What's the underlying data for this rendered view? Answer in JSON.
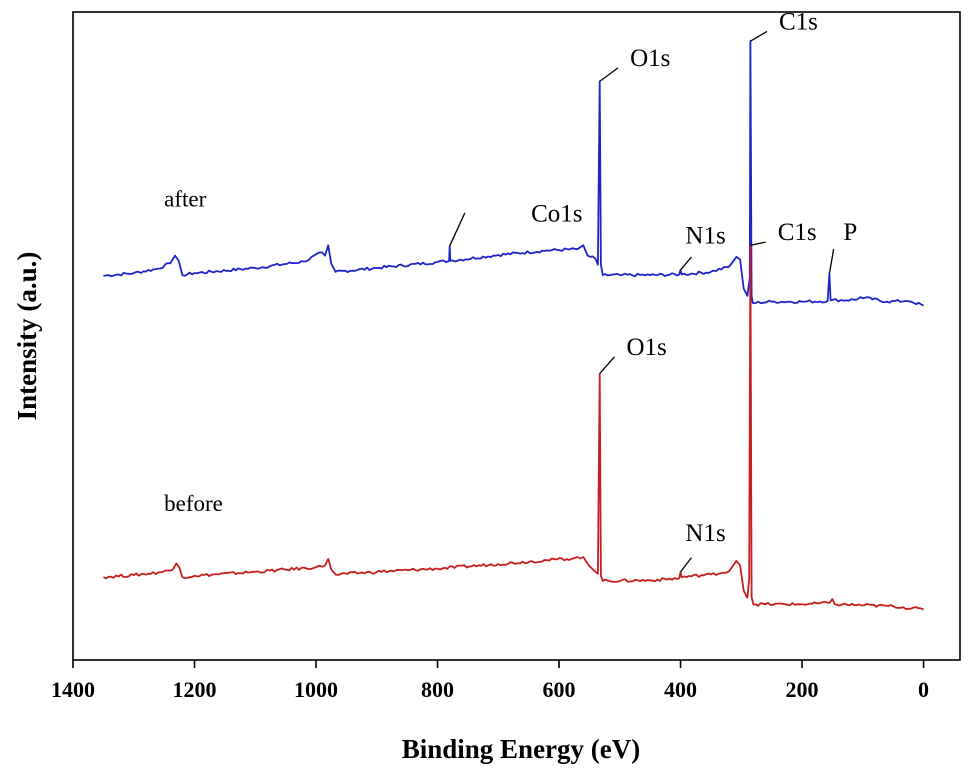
{
  "chart_data": {
    "type": "line",
    "title": "",
    "xlabel": "Binding Energy (eV)",
    "ylabel": "Intensity (a.u.)",
    "xlim": [
      1400,
      -60
    ],
    "ylim": [
      0,
      100
    ],
    "x_reversed": true,
    "x_ticks": [
      1400,
      1200,
      1000,
      800,
      600,
      400,
      200,
      0
    ],
    "x_tick_labels": [
      "1400",
      "1200",
      "1000",
      "800",
      "600",
      "400",
      "200",
      "0"
    ],
    "series": [
      {
        "name": "after",
        "color": "#1f24c9",
        "points": [
          [
            1350,
            59.3
          ],
          [
            1300,
            59.7
          ],
          [
            1260,
            60.4
          ],
          [
            1240,
            61.2
          ],
          [
            1232,
            62.4
          ],
          [
            1226,
            61.6
          ],
          [
            1220,
            59.4
          ],
          [
            1200,
            59.7
          ],
          [
            1100,
            60.5
          ],
          [
            1020,
            61.5
          ],
          [
            990,
            62.9
          ],
          [
            985,
            62.4
          ],
          [
            980,
            64.0
          ],
          [
            975,
            61.2
          ],
          [
            968,
            59.9
          ],
          [
            900,
            60.5
          ],
          [
            800,
            61.4
          ],
          [
            781,
            61.6
          ],
          [
            780,
            63.9
          ],
          [
            779,
            61.6
          ],
          [
            700,
            62.5
          ],
          [
            620,
            63.2
          ],
          [
            570,
            63.4
          ],
          [
            560,
            64.0
          ],
          [
            553,
            62.4
          ],
          [
            540,
            61.9
          ],
          [
            536,
            61.0
          ],
          [
            533,
            89.3
          ],
          [
            531,
            61.0
          ],
          [
            528,
            59.4
          ],
          [
            500,
            59.4
          ],
          [
            450,
            59.4
          ],
          [
            402,
            59.5
          ],
          [
            400,
            60.2
          ],
          [
            398,
            59.5
          ],
          [
            350,
            59.9
          ],
          [
            320,
            60.7
          ],
          [
            308,
            62.2
          ],
          [
            302,
            61.8
          ],
          [
            296,
            57.3
          ],
          [
            290,
            56.2
          ],
          [
            286,
            59.0
          ],
          [
            285,
            95.5
          ],
          [
            283,
            56.2
          ],
          [
            281,
            55.1
          ],
          [
            250,
            55.3
          ],
          [
            200,
            55.3
          ],
          [
            158,
            55.4
          ],
          [
            155,
            59.6
          ],
          [
            153,
            55.5
          ],
          [
            110,
            55.6
          ],
          [
            104,
            56.0
          ],
          [
            60,
            55.3
          ],
          [
            30,
            55.4
          ],
          [
            20,
            55.3
          ],
          [
            0,
            54.7
          ]
        ]
      },
      {
        "name": "before",
        "color": "#c81e1e",
        "points": [
          [
            1350,
            12.8
          ],
          [
            1300,
            13.1
          ],
          [
            1260,
            13.5
          ],
          [
            1236,
            13.9
          ],
          [
            1230,
            14.9
          ],
          [
            1225,
            14.3
          ],
          [
            1220,
            12.8
          ],
          [
            1200,
            13.0
          ],
          [
            1100,
            13.6
          ],
          [
            1000,
            14.3
          ],
          [
            985,
            14.6
          ],
          [
            980,
            15.6
          ],
          [
            975,
            14.0
          ],
          [
            968,
            13.2
          ],
          [
            900,
            13.6
          ],
          [
            800,
            14.1
          ],
          [
            700,
            14.8
          ],
          [
            620,
            15.4
          ],
          [
            575,
            15.7
          ],
          [
            560,
            15.9
          ],
          [
            552,
            14.7
          ],
          [
            540,
            13.6
          ],
          [
            536,
            13.3
          ],
          [
            533,
            44.2
          ],
          [
            531,
            13.0
          ],
          [
            528,
            12.2
          ],
          [
            450,
            12.3
          ],
          [
            402,
            12.6
          ],
          [
            400,
            13.6
          ],
          [
            398,
            12.8
          ],
          [
            350,
            13.2
          ],
          [
            320,
            13.7
          ],
          [
            308,
            15.3
          ],
          [
            302,
            14.6
          ],
          [
            296,
            10.7
          ],
          [
            290,
            9.6
          ],
          [
            287,
            12.5
          ],
          [
            285,
            64.0
          ],
          [
            283,
            9.7
          ],
          [
            280,
            8.6
          ],
          [
            200,
            8.6
          ],
          [
            155,
            8.8
          ],
          [
            150,
            9.4
          ],
          [
            146,
            8.6
          ],
          [
            50,
            8.3
          ],
          [
            0,
            7.8
          ]
        ]
      }
    ],
    "series_labels": [
      {
        "text": "after",
        "x": 1250,
        "y": 70,
        "series": "after"
      },
      {
        "text": "before",
        "x": 1250,
        "y": 23,
        "series": "before"
      }
    ],
    "annotations": [
      {
        "label": "C1s",
        "series": "after",
        "peak_x": 285,
        "peak_y": 95.5,
        "text_x": 238,
        "text_y": 97.3
      },
      {
        "label": "O1s",
        "series": "after",
        "peak_x": 533,
        "peak_y": 89.3,
        "text_x": 483,
        "text_y": 91.7
      },
      {
        "label": "Co1s",
        "series": "after",
        "peak_x": 780,
        "peak_y": 63.9,
        "line_end_x": 755,
        "line_end_y": 69.0,
        "text_x": 646,
        "text_y": 67.7
      },
      {
        "label": "N1s",
        "series": "after",
        "peak_x": 400,
        "peak_y": 60.2,
        "line_end_x": 382,
        "line_end_y": 62.2,
        "text_x": 392,
        "text_y": 64.3
      },
      {
        "label": "P",
        "series": "after",
        "peak_x": 155,
        "peak_y": 59.6,
        "line_end_x": 148,
        "line_end_y": 63.4,
        "text_x": 132,
        "text_y": 64.8
      },
      {
        "label": "C1s",
        "series": "before",
        "peak_x": 285,
        "peak_y": 64.0,
        "text_x": 240,
        "text_y": 64.8
      },
      {
        "label": "O1s",
        "series": "before",
        "peak_x": 533,
        "peak_y": 44.2,
        "text_x": 489,
        "text_y": 47.1
      },
      {
        "label": "N1s",
        "series": "before",
        "peak_x": 400,
        "peak_y": 13.6,
        "line_end_x": 382,
        "line_end_y": 15.8,
        "text_x": 392,
        "text_y": 18.4
      }
    ],
    "grid": false,
    "legend": "none"
  }
}
